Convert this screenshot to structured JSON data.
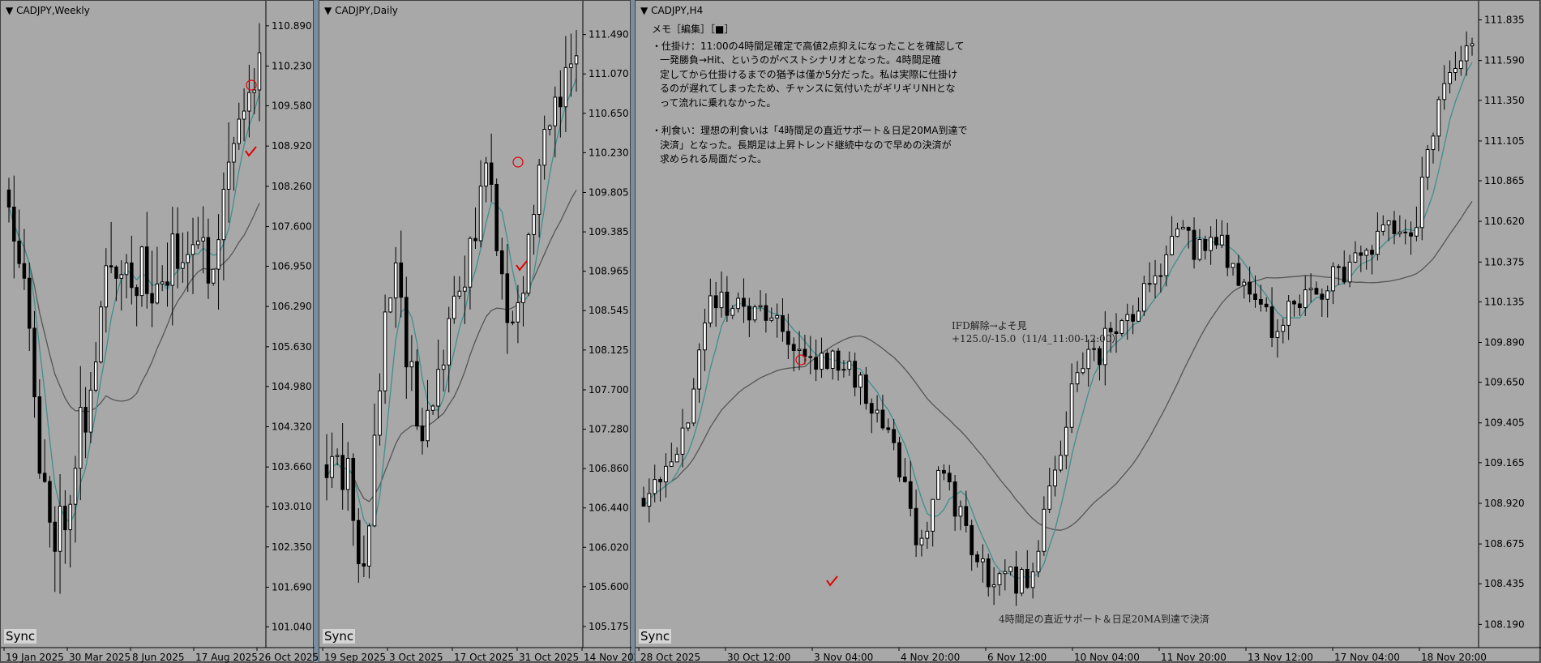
{
  "colors": {
    "bg": "#a8a8a8",
    "bull": "#ffffff",
    "bear": "#000000",
    "ma_fast": "#3f8f8c",
    "ma_slow": "#555555",
    "mark": "#e00000"
  },
  "panels": [
    {
      "title": "CADJPY,Weekly",
      "sync": "Sync",
      "y_ticks": [
        "110.890",
        "110.230",
        "109.580",
        "108.920",
        "108.260",
        "107.600",
        "106.950",
        "106.290",
        "105.630",
        "104.980",
        "104.320",
        "103.660",
        "103.010",
        "102.350",
        "101.690",
        "101.040"
      ],
      "x_ticks": [
        "19 Jan 2025",
        "30 Mar 2025",
        "8 Jun 2025",
        "17 Aug 2025",
        "26 Oct 2025"
      ]
    },
    {
      "title": "CADJPY,Daily",
      "sync": "Sync",
      "y_ticks": [
        "111.490",
        "111.070",
        "110.650",
        "110.230",
        "109.805",
        "109.385",
        "108.965",
        "108.545",
        "108.125",
        "107.700",
        "107.280",
        "106.860",
        "106.440",
        "106.020",
        "105.600",
        "105.175"
      ],
      "x_ticks": [
        "19 Sep 2025",
        "3 Oct 2025",
        "17 Oct 2025",
        "31 Oct 2025",
        "14 Nov 2025"
      ]
    },
    {
      "title": "CADJPY,H4",
      "sync": "Sync",
      "y_ticks": [
        "111.835",
        "111.590",
        "111.350",
        "111.105",
        "110.865",
        "110.620",
        "110.375",
        "110.135",
        "109.890",
        "109.650",
        "109.405",
        "109.165",
        "108.920",
        "108.675",
        "108.435",
        "108.190"
      ],
      "x_ticks": [
        "28 Oct 2025",
        "30 Oct 12:00",
        "3 Nov 04:00",
        "4 Nov 20:00",
        "6 Nov 12:00",
        "10 Nov 04:00",
        "11 Nov 20:00",
        "13 Nov 12:00",
        "17 Nov 04:00",
        "18 Nov 20:00"
      ]
    }
  ],
  "memo": {
    "header": "メモ［編集］［■］",
    "entry_label": "・仕掛け：11:00の4時間足確定で高値2点抑えになったことを確認して",
    "entry_lines": [
      "一発勝負→Hit、というのがベストシナリオとなった。4時間足確",
      "定してから仕掛けるまでの猶予は僅か5分だった。私は実際に仕掛け",
      "るのが遅れてしまったため、チャンスに気付いたがギリギリNHとな",
      "って流れに乗れなかった。"
    ],
    "exit_label": "・利食い：理想の利食いは「4時間足の直近サポート＆日足20MA到達で",
    "exit_lines": [
      "決済」となった。長期足は上昇トレンド継続中なので早めの決済が",
      "求められる局面だった。"
    ]
  },
  "annotations": {
    "ifd_line1": "IFD解除→よそ見",
    "ifd_line2": "+125.0/-15.0（11/4_11:00-12:00）",
    "exit_note": "4時間足の直近サポート＆日足20MA到達で決済"
  },
  "chart_data": [
    {
      "type": "candlestick",
      "timeframe": "Weekly",
      "symbol": "CADJPY",
      "ylim": [
        100.7,
        111.3
      ],
      "last_close": 110.3
    },
    {
      "type": "candlestick",
      "timeframe": "Daily",
      "symbol": "CADJPY",
      "ylim": [
        104.95,
        111.85
      ],
      "last_close": 111.2
    },
    {
      "type": "candlestick",
      "timeframe": "H4",
      "symbol": "CADJPY",
      "ylim": [
        108.05,
        111.95
      ],
      "last_close": 111.75
    }
  ]
}
